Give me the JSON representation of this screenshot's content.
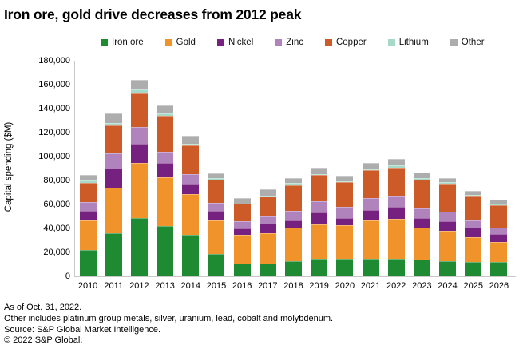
{
  "title": "Iron ore, gold drive decreases from 2012 peak",
  "footer": {
    "as_of": "As of Oct. 31, 2022.",
    "other_note": "Other includes platinum group metals, silver, uranium, lead, cobalt and molybdenum.",
    "source": "Source: S&P Global Market Intelligence.",
    "copyright": "© 2022 S&P Global."
  },
  "chart_data": {
    "type": "bar",
    "stacked": true,
    "title": "Iron ore, gold drive decreases from 2012 peak",
    "xlabel": "",
    "ylabel": "Capital spending ($M)",
    "ylim": [
      0,
      180000
    ],
    "ytick_step": 20000,
    "ytick_labels": [
      "0",
      "20,000",
      "40,000",
      "60,000",
      "80,000",
      "100,000",
      "120,000",
      "140,000",
      "160,000",
      "180,000"
    ],
    "grid": false,
    "legend_position": "top",
    "categories": [
      "2010",
      "2011",
      "2012",
      "2013",
      "2014",
      "2015",
      "2016",
      "2017",
      "2018",
      "2019",
      "2020",
      "2021",
      "2022",
      "2023",
      "2024",
      "2025",
      "2026"
    ],
    "series": [
      {
        "name": "Iron ore",
        "color": "#1e8b33",
        "values": [
          22000,
          36000,
          49000,
          42000,
          35000,
          18500,
          11000,
          11000,
          13000,
          15000,
          15000,
          15000,
          15000,
          14000,
          13000,
          12000,
          12000
        ]
      },
      {
        "name": "Gold",
        "color": "#f0932b",
        "values": [
          25000,
          38000,
          46000,
          41000,
          34000,
          28000,
          23500,
          25000,
          27500,
          28500,
          27500,
          31500,
          33000,
          26500,
          25000,
          20500,
          16500
        ]
      },
      {
        "name": "Nickel",
        "color": "#76217f",
        "values": [
          8000,
          16000,
          16000,
          12000,
          8000,
          8000,
          5500,
          8000,
          6000,
          10000,
          6000,
          9000,
          10000,
          8500,
          8000,
          8000,
          7000
        ]
      },
      {
        "name": "Zinc",
        "color": "#b083bd",
        "values": [
          7000,
          13000,
          14000,
          9000,
          8500,
          7000,
          6000,
          6000,
          8000,
          9000,
          9500,
          10000,
          9000,
          8000,
          8000,
          6000,
          5000
        ]
      },
      {
        "name": "Copper",
        "color": "#cd5b27",
        "values": [
          16000,
          23000,
          28000,
          30000,
          24000,
          19500,
          14500,
          16500,
          21500,
          22000,
          20500,
          23000,
          24000,
          23500,
          23000,
          20500,
          19000
        ]
      },
      {
        "name": "Lithium",
        "color": "#a8d8c8",
        "values": [
          2000,
          2000,
          3000,
          2000,
          1500,
          1000,
          500,
          500,
          2000,
          1000,
          1000,
          1000,
          2000,
          1500,
          2000,
          1000,
          1000
        ]
      },
      {
        "name": "Other",
        "color": "#adadad",
        "values": [
          5000,
          8000,
          8000,
          7000,
          6500,
          4000,
          4500,
          5500,
          4000,
          5000,
          4500,
          5500,
          5000,
          5000,
          3000,
          3500,
          3500
        ]
      }
    ]
  }
}
